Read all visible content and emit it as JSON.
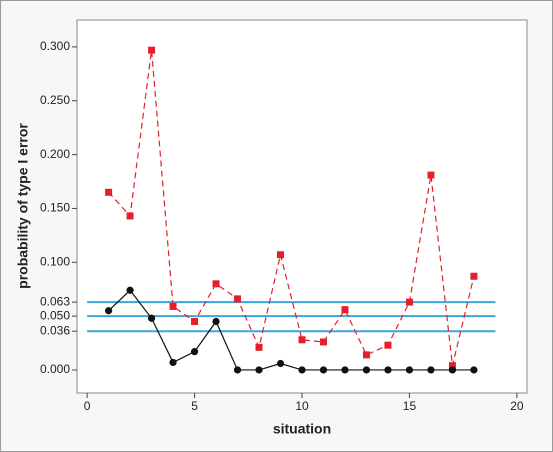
{
  "chart_data": {
    "type": "line",
    "x_label": "situation",
    "y_label": "probability of type I error",
    "x": [
      1,
      2,
      3,
      4,
      5,
      6,
      7,
      8,
      9,
      10,
      11,
      12,
      13,
      14,
      15,
      16,
      17,
      18
    ],
    "series": [
      {
        "color": "#e3202b",
        "dash": true,
        "marker": "square",
        "values": [
          0.165,
          0.143,
          0.297,
          0.059,
          0.045,
          0.08,
          0.066,
          0.021,
          0.107,
          0.028,
          0.026,
          0.056,
          0.014,
          0.023,
          0.063,
          0.181,
          0.004,
          0.087
        ]
      },
      {
        "color": "#111111",
        "dash": false,
        "marker": "circle",
        "values": [
          0.055,
          0.074,
          0.048,
          0.007,
          0.017,
          0.045,
          0,
          0,
          0.006,
          0,
          0,
          0,
          0,
          0,
          0,
          0,
          0,
          0
        ]
      }
    ],
    "reference_lines": {
      "color": "#3aa6dd",
      "values": [
        0.063,
        0.05,
        0.036
      ],
      "x_from": 0,
      "x_to": 19
    },
    "xlim": [
      -0.47,
      20.47
    ],
    "ylim": [
      -0.0214,
      0.325
    ],
    "xticks": [
      0,
      5,
      10,
      15,
      20
    ],
    "yticks": [
      {
        "value": 0,
        "label": "0.000"
      },
      {
        "value": 0.036,
        "label": "0.036"
      },
      {
        "value": 0.05,
        "label": "0.050"
      },
      {
        "value": 0.063,
        "label": "0.063"
      },
      {
        "value": 0.1,
        "label": "0.100"
      },
      {
        "value": 0.15,
        "label": "0.150"
      },
      {
        "value": 0.2,
        "label": "0.200"
      },
      {
        "value": 0.25,
        "label": "0.250"
      },
      {
        "value": 0.3,
        "label": "0.300"
      }
    ]
  }
}
